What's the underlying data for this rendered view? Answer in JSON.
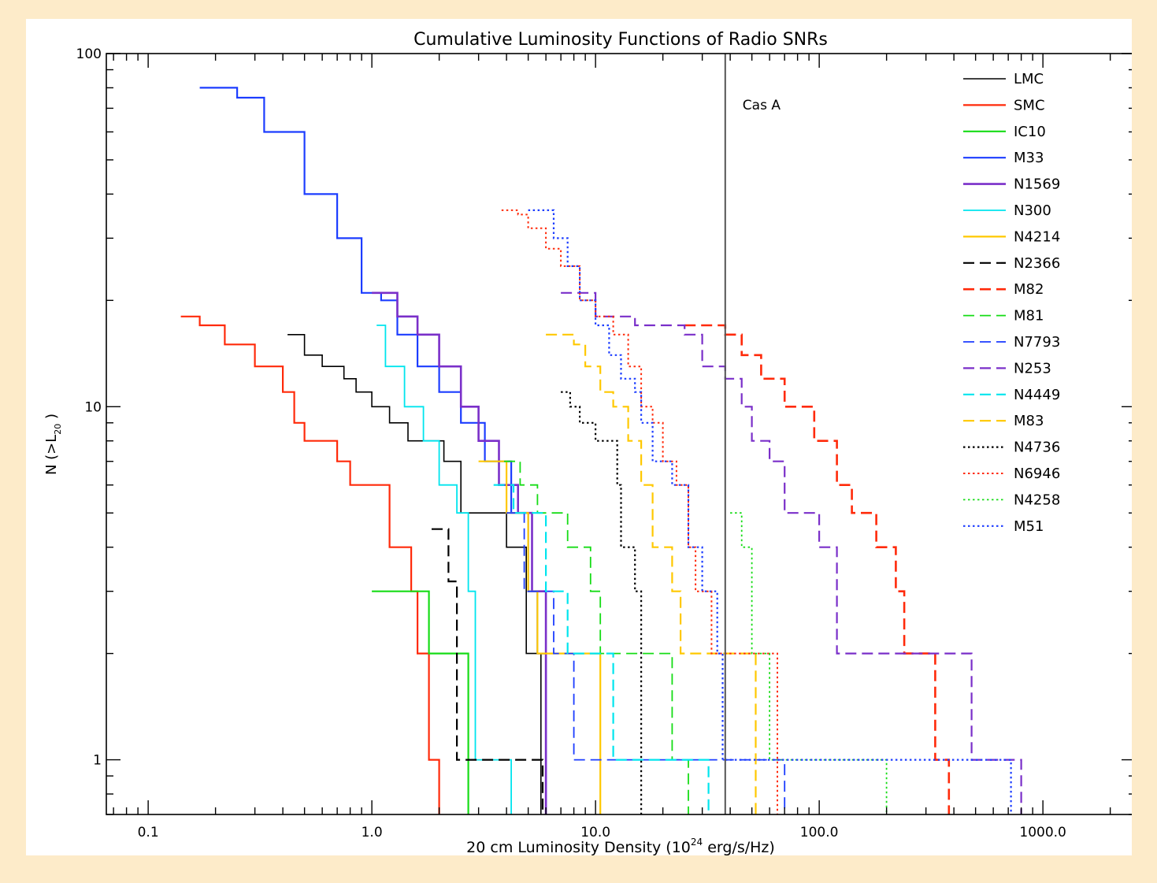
{
  "chart_data": {
    "type": "line",
    "title": "Cumulative Luminosity Functions of Radio SNRs",
    "xlabel": "20 cm Luminosity Density (10^24 erg/s/Hz)",
    "xlabel_parts": {
      "pre": "20 cm Luminosity Density (10",
      "sup": "24",
      "post": " erg/s/Hz)"
    },
    "ylabel": "N (>L20)",
    "ylabel_parts": {
      "pre": "N (>L",
      "sub": "20",
      "post": " )"
    },
    "x_scale": "log",
    "y_scale": "log",
    "xlim": [
      0.065,
      2600
    ],
    "ylim": [
      0.7,
      100
    ],
    "x_ticks": [
      {
        "value": 0.1,
        "label": "0.1"
      },
      {
        "value": 1,
        "label": "1.0"
      },
      {
        "value": 10,
        "label": "10.0"
      },
      {
        "value": 100,
        "label": "100.0"
      },
      {
        "value": 1000,
        "label": "1000.0"
      }
    ],
    "y_ticks": [
      {
        "value": 1,
        "label": "1"
      },
      {
        "value": 10,
        "label": "10"
      },
      {
        "value": 100,
        "label": "100"
      }
    ],
    "grid": false,
    "legend_position": "top-right",
    "annotations": [
      {
        "type": "vline",
        "x": 38,
        "label": "Cas A",
        "color": "#555555"
      }
    ],
    "series": [
      {
        "name": "LMC",
        "color": "#000000",
        "dash": "solid",
        "width": 1.6,
        "points": [
          [
            0.42,
            16
          ],
          [
            0.5,
            14
          ],
          [
            0.6,
            13
          ],
          [
            0.75,
            12
          ],
          [
            0.85,
            11
          ],
          [
            1.0,
            10
          ],
          [
            1.2,
            9
          ],
          [
            1.45,
            8
          ],
          [
            2.1,
            7
          ],
          [
            2.5,
            5
          ],
          [
            3.0,
            5
          ],
          [
            4.0,
            4
          ],
          [
            4.9,
            2
          ],
          [
            5.7,
            1
          ],
          [
            5.7,
            0.7
          ]
        ]
      },
      {
        "name": "SMC",
        "color": "#ff2a0a",
        "dash": "solid",
        "width": 2.2,
        "points": [
          [
            0.14,
            18
          ],
          [
            0.17,
            17
          ],
          [
            0.22,
            15
          ],
          [
            0.3,
            13
          ],
          [
            0.4,
            11
          ],
          [
            0.45,
            9
          ],
          [
            0.5,
            8
          ],
          [
            0.7,
            7
          ],
          [
            0.8,
            6
          ],
          [
            1.2,
            4
          ],
          [
            1.5,
            3
          ],
          [
            1.6,
            2
          ],
          [
            1.8,
            1
          ],
          [
            2.0,
            1
          ],
          [
            2.0,
            0.7
          ]
        ]
      },
      {
        "name": "IC10",
        "color": "#16dc16",
        "dash": "solid",
        "width": 2.2,
        "points": [
          [
            1.0,
            3
          ],
          [
            1.8,
            2
          ],
          [
            2.7,
            1
          ],
          [
            2.7,
            0.7
          ]
        ]
      },
      {
        "name": "M33",
        "color": "#1c3dff",
        "dash": "solid",
        "width": 2.2,
        "points": [
          [
            0.17,
            80
          ],
          [
            0.25,
            75
          ],
          [
            0.33,
            60
          ],
          [
            0.5,
            40
          ],
          [
            0.7,
            30
          ],
          [
            0.9,
            21
          ],
          [
            1.1,
            20
          ],
          [
            1.3,
            16
          ],
          [
            1.6,
            13
          ],
          [
            2.0,
            11
          ],
          [
            2.5,
            9
          ],
          [
            3.2,
            7
          ],
          [
            4.2,
            5
          ],
          [
            5.0,
            3
          ],
          [
            5.5,
            2
          ],
          [
            6.0,
            1
          ],
          [
            6.0,
            0.7
          ]
        ]
      },
      {
        "name": "N1569",
        "color": "#7a2fc9",
        "dash": "solid",
        "width": 2.6,
        "points": [
          [
            1.0,
            21
          ],
          [
            1.3,
            18
          ],
          [
            1.6,
            16
          ],
          [
            2.0,
            13
          ],
          [
            2.5,
            10
          ],
          [
            3.0,
            8
          ],
          [
            3.7,
            6
          ],
          [
            4.5,
            5
          ],
          [
            5.2,
            3
          ],
          [
            6.0,
            1
          ],
          [
            6.0,
            0.7
          ]
        ]
      },
      {
        "name": "N300",
        "color": "#00e5ee",
        "dash": "solid",
        "width": 1.8,
        "points": [
          [
            1.05,
            17
          ],
          [
            1.15,
            13
          ],
          [
            1.4,
            10
          ],
          [
            1.7,
            8
          ],
          [
            2.0,
            6
          ],
          [
            2.4,
            5
          ],
          [
            2.7,
            3
          ],
          [
            2.9,
            1
          ],
          [
            4.2,
            1
          ],
          [
            4.2,
            0.7
          ]
        ]
      },
      {
        "name": "N4214",
        "color": "#ffc800",
        "dash": "solid",
        "width": 2.2,
        "points": [
          [
            3.0,
            7
          ],
          [
            4.0,
            5
          ],
          [
            5.0,
            3
          ],
          [
            5.5,
            2
          ],
          [
            10.5,
            1
          ],
          [
            10.5,
            0.7
          ]
        ]
      },
      {
        "name": "N2366",
        "color": "#000000",
        "dash": "dashed",
        "width": 2.2,
        "points": [
          [
            1.85,
            4.5
          ],
          [
            2.2,
            3.2
          ],
          [
            2.4,
            1
          ],
          [
            5.8,
            1
          ],
          [
            5.8,
            0.7
          ]
        ]
      },
      {
        "name": "M82",
        "color": "#ff2a0a",
        "dash": "dashed",
        "width": 2.6,
        "points": [
          [
            25,
            17
          ],
          [
            38,
            16
          ],
          [
            45,
            14
          ],
          [
            55,
            12
          ],
          [
            70,
            10
          ],
          [
            95,
            8
          ],
          [
            120,
            6
          ],
          [
            140,
            5
          ],
          [
            180,
            4
          ],
          [
            220,
            3
          ],
          [
            240,
            2
          ],
          [
            330,
            1
          ],
          [
            380,
            0.7
          ]
        ]
      },
      {
        "name": "M81",
        "color": "#16dc16",
        "dash": "dashed",
        "width": 1.8,
        "points": [
          [
            3.9,
            7
          ],
          [
            4.6,
            6
          ],
          [
            5.5,
            5
          ],
          [
            7.5,
            4
          ],
          [
            9.5,
            3
          ],
          [
            10.5,
            2
          ],
          [
            22,
            1
          ],
          [
            26,
            0.7
          ]
        ]
      },
      {
        "name": "N7793",
        "color": "#1c3dff",
        "dash": "dashed",
        "width": 1.8,
        "points": [
          [
            4.0,
            5
          ],
          [
            4.8,
            3
          ],
          [
            6.5,
            2
          ],
          [
            8.0,
            1
          ],
          [
            70,
            1
          ],
          [
            70,
            0.7
          ]
        ]
      },
      {
        "name": "N253",
        "color": "#7a2fc9",
        "dash": "dashed",
        "width": 2.2,
        "points": [
          [
            7.0,
            21
          ],
          [
            10,
            18
          ],
          [
            15,
            17
          ],
          [
            25,
            16
          ],
          [
            30,
            13
          ],
          [
            38,
            12
          ],
          [
            45,
            10
          ],
          [
            50,
            8
          ],
          [
            60,
            7
          ],
          [
            70,
            5
          ],
          [
            100,
            4
          ],
          [
            120,
            2
          ],
          [
            180,
            2
          ],
          [
            480,
            1
          ],
          [
            800,
            1
          ],
          [
            800,
            0.7
          ]
        ]
      },
      {
        "name": "N4449",
        "color": "#00e5ee",
        "dash": "dashed",
        "width": 2.2,
        "points": [
          [
            3.5,
            6
          ],
          [
            4.3,
            5
          ],
          [
            6.0,
            3
          ],
          [
            7.5,
            2
          ],
          [
            12,
            1
          ],
          [
            32,
            1
          ],
          [
            32,
            0.7
          ]
        ]
      },
      {
        "name": "M83",
        "color": "#ffc800",
        "dash": "dashed",
        "width": 2.2,
        "points": [
          [
            6.0,
            16
          ],
          [
            8.0,
            15
          ],
          [
            9.0,
            13
          ],
          [
            10.5,
            11
          ],
          [
            12,
            10
          ],
          [
            14,
            8
          ],
          [
            16,
            6
          ],
          [
            18,
            4
          ],
          [
            22,
            3
          ],
          [
            24,
            2
          ],
          [
            52,
            1
          ],
          [
            52,
            0.7
          ]
        ]
      },
      {
        "name": "N4736",
        "color": "#000000",
        "dash": "dotted",
        "width": 2.2,
        "points": [
          [
            7.0,
            11
          ],
          [
            7.7,
            10
          ],
          [
            8.5,
            9
          ],
          [
            10,
            8
          ],
          [
            12.5,
            6
          ],
          [
            13,
            4
          ],
          [
            15,
            3
          ],
          [
            16,
            1
          ],
          [
            16,
            0.7
          ]
        ]
      },
      {
        "name": "N6946",
        "color": "#ff2a0a",
        "dash": "dotted",
        "width": 2.0,
        "points": [
          [
            3.8,
            36
          ],
          [
            4.5,
            35
          ],
          [
            5.0,
            32
          ],
          [
            6.0,
            28
          ],
          [
            7.0,
            25
          ],
          [
            8.5,
            20
          ],
          [
            10,
            18
          ],
          [
            12,
            16
          ],
          [
            14,
            13
          ],
          [
            16,
            10
          ],
          [
            18,
            9
          ],
          [
            20,
            7
          ],
          [
            23,
            6
          ],
          [
            26,
            4
          ],
          [
            28,
            3
          ],
          [
            33,
            2
          ],
          [
            65,
            1
          ],
          [
            65,
            0.7
          ]
        ]
      },
      {
        "name": "N4258",
        "color": "#16dc16",
        "dash": "dotted",
        "width": 1.8,
        "points": [
          [
            40,
            5
          ],
          [
            45,
            4
          ],
          [
            50,
            2
          ],
          [
            60,
            1
          ],
          [
            200,
            1
          ],
          [
            200,
            0.7
          ]
        ]
      },
      {
        "name": "M51",
        "color": "#1c3dff",
        "dash": "dotted",
        "width": 2.2,
        "points": [
          [
            5.0,
            36
          ],
          [
            6.5,
            30
          ],
          [
            7.5,
            25
          ],
          [
            8.5,
            20
          ],
          [
            10,
            17
          ],
          [
            11.5,
            14
          ],
          [
            13,
            12
          ],
          [
            15,
            11
          ],
          [
            16,
            9
          ],
          [
            18,
            7
          ],
          [
            22,
            6
          ],
          [
            26,
            4
          ],
          [
            30,
            3
          ],
          [
            35,
            2
          ],
          [
            37,
            1
          ],
          [
            720,
            1
          ],
          [
            720,
            0.7
          ]
        ]
      }
    ]
  }
}
